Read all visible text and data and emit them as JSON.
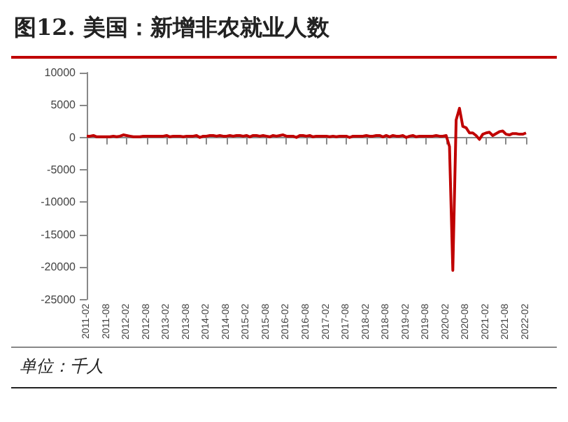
{
  "chart_data": {
    "type": "line",
    "title": "图12. 美国：新增非农就业人数",
    "annotations": [
      "单位：千人"
    ],
    "categories": [
      "2011-02",
      null,
      null,
      null,
      null,
      null,
      "2011-08",
      null,
      null,
      null,
      null,
      null,
      "2012-02",
      null,
      null,
      null,
      null,
      null,
      "2012-08",
      null,
      null,
      null,
      null,
      null,
      "2013-02",
      null,
      null,
      null,
      null,
      null,
      "2013-08",
      null,
      null,
      null,
      null,
      null,
      "2014-02",
      null,
      null,
      null,
      null,
      null,
      "2014-08",
      null,
      null,
      null,
      null,
      null,
      "2015-02",
      null,
      null,
      null,
      null,
      null,
      "2015-08",
      null,
      null,
      null,
      null,
      null,
      "2016-02",
      null,
      null,
      null,
      null,
      null,
      "2016-08",
      null,
      null,
      null,
      null,
      null,
      "2017-02",
      null,
      null,
      null,
      null,
      null,
      "2017-08",
      null,
      null,
      null,
      null,
      null,
      "2018-02",
      null,
      null,
      null,
      null,
      null,
      "2018-08",
      null,
      null,
      null,
      null,
      null,
      "2019-02",
      null,
      null,
      null,
      null,
      null,
      "2019-08",
      null,
      null,
      null,
      null,
      null,
      "2020-02",
      null,
      null,
      null,
      null,
      null,
      "2020-08",
      null,
      null,
      null,
      null,
      null,
      "2021-02",
      null,
      null,
      null,
      null,
      null,
      "2021-08",
      null,
      null,
      null,
      null,
      null,
      "2022-02"
    ],
    "series": [
      {
        "color": "#c00000",
        "values": [
          200,
          200,
          300,
          100,
          100,
          100,
          100,
          100,
          200,
          100,
          200,
          400,
          300,
          200,
          100,
          100,
          100,
          200,
          200,
          200,
          200,
          200,
          200,
          200,
          300,
          100,
          200,
          200,
          200,
          100,
          200,
          200,
          200,
          300,
          0,
          200,
          200,
          300,
          300,
          200,
          300,
          200,
          200,
          300,
          200,
          300,
          300,
          200,
          300,
          100,
          300,
          300,
          200,
          300,
          200,
          100,
          300,
          200,
          300,
          400,
          200,
          200,
          200,
          0,
          300,
          300,
          200,
          300,
          100,
          200,
          200,
          200,
          200,
          100,
          200,
          100,
          200,
          200,
          200,
          0,
          200,
          200,
          200,
          200,
          300,
          200,
          200,
          300,
          300,
          100,
          300,
          100,
          300,
          200,
          200,
          300,
          0,
          200,
          300,
          100,
          200,
          200,
          200,
          200,
          200,
          300,
          200,
          200,
          300,
          -1400,
          -20500,
          2700,
          4500,
          1700,
          1500,
          700,
          700,
          300,
          -300,
          500,
          700,
          800,
          300,
          600,
          900,
          1000,
          500,
          400,
          600,
          600,
          500,
          500,
          700
        ]
      }
    ],
    "ylim": [
      -25000,
      10000
    ],
    "yticks": [
      -25000,
      -20000,
      -15000,
      -10000,
      -5000,
      0,
      5000,
      10000
    ],
    "marker": "none",
    "line_style": "solid"
  }
}
